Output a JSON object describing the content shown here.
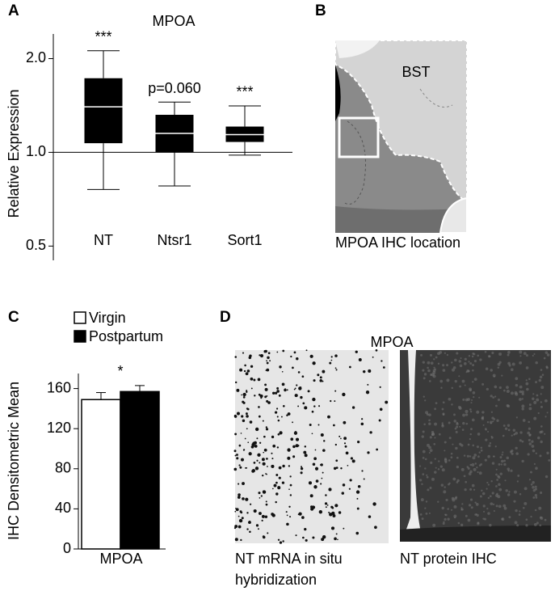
{
  "panel_labels": [
    "A",
    "B",
    "C",
    "D"
  ],
  "chart_data": [
    {
      "type": "box",
      "title": "MPOA",
      "ylabel": "Relative Expression",
      "log_scale": true,
      "categories": [
        "NT",
        "Ntsr1",
        "Sort1"
      ],
      "whisker_high": [
        2.12,
        1.45,
        1.41
      ],
      "q3": [
        1.73,
        1.32,
        1.21
      ],
      "median": [
        1.4,
        1.15,
        1.14
      ],
      "q1": [
        1.07,
        1.0,
        1.08
      ],
      "whisker_low": [
        0.76,
        0.78,
        0.98
      ],
      "annotations": [
        "***",
        "p=0.060",
        "***"
      ],
      "color": "#000000",
      "median_color": "#ffffff",
      "ylim": [
        0.45,
        2.4
      ],
      "yticks": [
        {
          "value": 2,
          "label": "2.0"
        },
        {
          "value": 1,
          "label": "1.0"
        },
        0.5
      ],
      "baseline": 1
    },
    {
      "type": "bar",
      "xlabel": "MPOA",
      "ylabel": "IHC Densitometric Mean",
      "categories": [
        "MPOA"
      ],
      "series": [
        {
          "name": "Virgin",
          "color": "#ffffff",
          "values": [
            149
          ],
          "errors": [
            7
          ]
        },
        {
          "name": "Postpartum",
          "color": "#000000",
          "values": [
            157
          ],
          "errors": [
            6
          ]
        }
      ],
      "annotations": [
        "*"
      ],
      "ylim": [
        0,
        175
      ],
      "yticks": [
        0,
        40,
        80,
        120,
        160
      ]
    }
  ],
  "diagram": {
    "region_label": "BST",
    "caption": "MPOA IHC location"
  },
  "images": {
    "title": "MPOA",
    "captions": [
      [
        "NT mRNA in situ",
        "hybridization"
      ],
      [
        "NT protein IHC"
      ]
    ]
  }
}
